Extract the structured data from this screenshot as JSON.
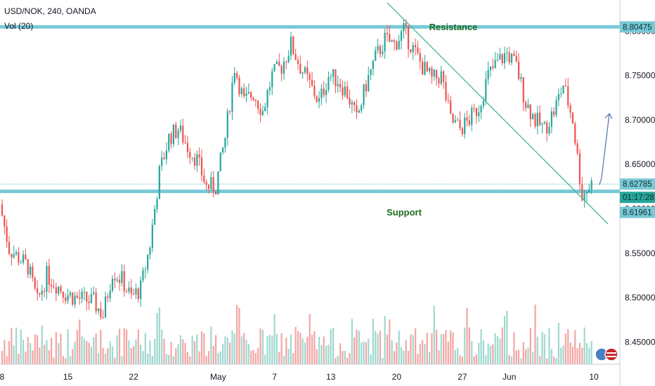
{
  "header": {
    "symbol_line": "USD/NOK, 240, OANDA",
    "volume_line": "Vol (20)"
  },
  "chart_data": {
    "type": "candlestick",
    "symbol": "USD/NOK",
    "interval": "240",
    "source": "OANDA",
    "y_ticks": [
      "8.45000",
      "8.50000",
      "8.55000",
      "8.60000",
      "8.65000",
      "8.70000",
      "8.75000",
      "8.80000"
    ],
    "x_ticks": [
      "8",
      "15",
      "22",
      "May",
      "7",
      "13",
      "20",
      "27",
      "Jun",
      "10"
    ],
    "ylim": [
      8.425,
      8.835
    ],
    "price_tags": {
      "resistance": "8.80475",
      "last_price": "8.62785",
      "countdown": "01:17:28",
      "support": "8.61961"
    },
    "annotations": {
      "resistance_label": "Resistance",
      "support_label": "Support",
      "resistance_level": 8.80475,
      "support_level": 8.61961,
      "last_price_level": 8.62785
    },
    "trendline": {
      "from": [
        "May 19",
        8.832
      ],
      "to": [
        "Jun 10",
        8.583
      ]
    },
    "projection_arrow": {
      "from": [
        "Jun 10",
        8.627
      ],
      "to": [
        "Jun 10",
        8.707
      ]
    },
    "price_path": [
      [
        "Apr 8",
        8.605
      ],
      [
        "Apr 9",
        8.555
      ],
      [
        "Apr 11",
        8.535
      ],
      [
        "Apr 12",
        8.495
      ],
      [
        "Apr 13",
        8.525
      ],
      [
        "Apr 15",
        8.505
      ],
      [
        "Apr 16",
        8.5
      ],
      [
        "Apr 18",
        8.495
      ],
      [
        "Apr 19",
        8.48
      ],
      [
        "Apr 20",
        8.53
      ],
      [
        "Apr 21",
        8.52
      ],
      [
        "Apr 22",
        8.5
      ],
      [
        "Apr 23",
        8.51
      ],
      [
        "Apr 24",
        8.56
      ],
      [
        "Apr 25",
        8.64
      ],
      [
        "Apr 26",
        8.68
      ],
      [
        "Apr 27",
        8.69
      ],
      [
        "Apr 28",
        8.67
      ],
      [
        "Apr 29",
        8.655
      ],
      [
        "Apr 30",
        8.625
      ],
      [
        "May 1",
        8.625
      ],
      [
        "May 2",
        8.68
      ],
      [
        "May 3",
        8.76
      ],
      [
        "May 4",
        8.72
      ],
      [
        "May 5",
        8.73
      ],
      [
        "May 6",
        8.71
      ],
      [
        "May 7",
        8.75
      ],
      [
        "May 8",
        8.76
      ],
      [
        "May 9",
        8.785
      ],
      [
        "May 10",
        8.76
      ],
      [
        "May 11",
        8.74
      ],
      [
        "May 12",
        8.72
      ],
      [
        "May 13",
        8.75
      ],
      [
        "May 14",
        8.745
      ],
      [
        "May 15",
        8.73
      ],
      [
        "May 16",
        8.7
      ],
      [
        "May 17",
        8.74
      ],
      [
        "May 18",
        8.77
      ],
      [
        "May 19",
        8.79
      ],
      [
        "May 20",
        8.785
      ],
      [
        "May 21",
        8.8
      ],
      [
        "May 22",
        8.78
      ],
      [
        "May 23",
        8.76
      ],
      [
        "May 24",
        8.745
      ],
      [
        "May 25",
        8.75
      ],
      [
        "May 26",
        8.7
      ],
      [
        "May 27",
        8.69
      ],
      [
        "May 28",
        8.7
      ],
      [
        "May 29",
        8.715
      ],
      [
        "May 30",
        8.75
      ],
      [
        "May 31",
        8.765
      ],
      [
        "Jun 1",
        8.775
      ],
      [
        "Jun 2",
        8.76
      ],
      [
        "Jun 3",
        8.72
      ],
      [
        "Jun 4",
        8.7
      ],
      [
        "Jun 5",
        8.69
      ],
      [
        "Jun 6",
        8.71
      ],
      [
        "Jun 7",
        8.74
      ],
      [
        "Jun 8",
        8.7
      ],
      [
        "Jun 9",
        8.615
      ],
      [
        "Jun 10",
        8.628
      ]
    ],
    "colors": {
      "bull": "#26a69a",
      "bear": "#ef5350",
      "vol_bull": "#9fd8cf",
      "vol_bear": "#f3a6a4",
      "level_line": "#78c9d6",
      "trendline": "#43b59a",
      "arrow": "#5b7bb0",
      "label_green": "#1e6b1e"
    }
  }
}
